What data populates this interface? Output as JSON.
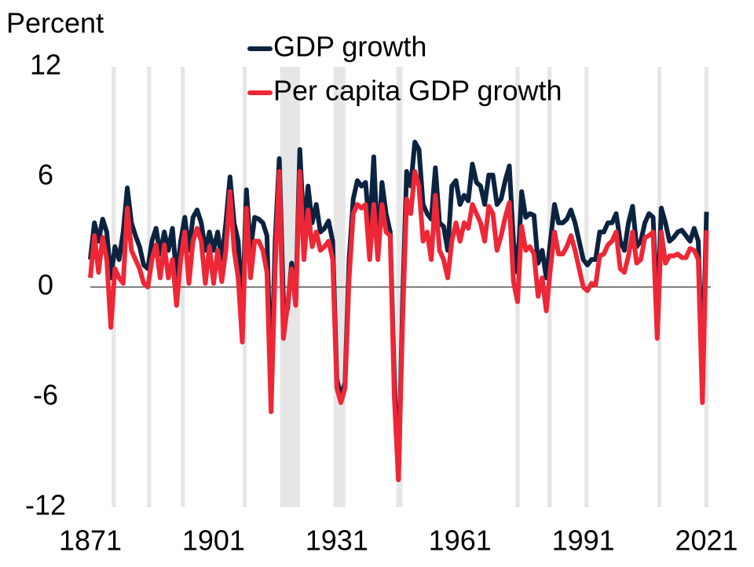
{
  "chart_data": {
    "type": "line",
    "y_axis_label": "Percent",
    "x": [
      1871,
      1872,
      1873,
      1874,
      1875,
      1876,
      1877,
      1878,
      1879,
      1880,
      1881,
      1882,
      1883,
      1884,
      1885,
      1886,
      1887,
      1888,
      1889,
      1890,
      1891,
      1892,
      1893,
      1894,
      1895,
      1896,
      1897,
      1898,
      1899,
      1900,
      1901,
      1902,
      1903,
      1904,
      1905,
      1906,
      1907,
      1908,
      1909,
      1910,
      1911,
      1912,
      1913,
      1914,
      1915,
      1916,
      1917,
      1918,
      1919,
      1920,
      1921,
      1922,
      1923,
      1924,
      1925,
      1926,
      1927,
      1928,
      1929,
      1930,
      1931,
      1932,
      1933,
      1934,
      1935,
      1936,
      1937,
      1938,
      1939,
      1940,
      1941,
      1942,
      1943,
      1944,
      1945,
      1946,
      1947,
      1948,
      1949,
      1950,
      1951,
      1952,
      1953,
      1954,
      1955,
      1956,
      1957,
      1958,
      1959,
      1960,
      1961,
      1962,
      1963,
      1964,
      1965,
      1966,
      1967,
      1968,
      1969,
      1970,
      1971,
      1972,
      1973,
      1974,
      1975,
      1976,
      1977,
      1978,
      1979,
      1980,
      1981,
      1982,
      1983,
      1984,
      1985,
      1986,
      1987,
      1988,
      1989,
      1990,
      1991,
      1992,
      1993,
      1994,
      1995,
      1996,
      1997,
      1998,
      1999,
      2000,
      2001,
      2002,
      2003,
      2004,
      2005,
      2006,
      2007,
      2008,
      2009,
      2010,
      2011,
      2012,
      2013,
      2014,
      2015,
      2016,
      2017,
      2018,
      2019,
      2020,
      2021
    ],
    "series": [
      {
        "name": "GDP growth",
        "color": "#0c2340",
        "values": [
          1.5,
          3.5,
          2.5,
          3.7,
          3,
          0.5,
          2.2,
          1.5,
          3,
          5.4,
          3.5,
          2.8,
          2.2,
          1.2,
          1,
          2.5,
          3.2,
          1.8,
          3,
          2,
          3.2,
          0.5,
          2.5,
          3.8,
          2,
          3.8,
          4.2,
          3.5,
          2,
          3,
          2,
          3,
          1.5,
          3.5,
          6,
          3.5,
          2.5,
          -1.5,
          5.3,
          2,
          3.8,
          3.7,
          3.5,
          2.8,
          -5.5,
          2.5,
          7,
          -0.8,
          -1.2,
          1.3,
          -0.8,
          7.5,
          3,
          5.5,
          3.5,
          4.5,
          3,
          3.2,
          3.6,
          2.5,
          -5,
          -6,
          -5.2,
          1.5,
          4.8,
          5.8,
          5.5,
          5.7,
          3,
          7.1,
          1.8,
          5.7,
          4,
          3,
          -5,
          -10.5,
          -1,
          6.3,
          5.5,
          7.9,
          7.5,
          4.5,
          4,
          3.7,
          6.5,
          3.5,
          3.3,
          2,
          5.5,
          5.8,
          4.5,
          5,
          4.7,
          6.7,
          5.7,
          5.5,
          4.5,
          6.1,
          6.1,
          4.5,
          4.8,
          5.8,
          6.6,
          2.5,
          0.8,
          5.2,
          3.8,
          4,
          3.9,
          1.3,
          2,
          0.5,
          2.5,
          4.5,
          3.5,
          3.5,
          3.7,
          4.2,
          3.5,
          2.5,
          1.5,
          1.2,
          1.5,
          1.5,
          3,
          3,
          3.5,
          3.5,
          4,
          2.5,
          2,
          3.5,
          4.4,
          2.2,
          2.5,
          3.5,
          4,
          3.8,
          -1.5,
          4.3,
          3.5,
          2.5,
          2.7,
          3,
          3.1,
          2.8,
          2.5,
          3.2,
          2.5,
          -4.8,
          4.1
        ]
      },
      {
        "name": "Per capita GDP growth",
        "color": "#ee2737",
        "values": [
          0.5,
          2.8,
          0.8,
          2.7,
          1.5,
          -2.2,
          1,
          0.5,
          0.2,
          4.3,
          2,
          1.5,
          1,
          0.2,
          0,
          1.5,
          2.3,
          0.5,
          2.3,
          0.5,
          1.5,
          -1,
          1.5,
          3,
          0.2,
          2.5,
          3.2,
          2.5,
          0.2,
          2.2,
          0.2,
          2,
          0.3,
          2,
          5.2,
          2,
          0.5,
          -3,
          4.3,
          0.5,
          2.5,
          2.5,
          2,
          0.8,
          -6.8,
          1,
          6.3,
          -2.8,
          -1,
          1,
          -1,
          6.3,
          1.5,
          4.2,
          2.2,
          3,
          2,
          2.2,
          2.5,
          1.5,
          -5.5,
          -6.3,
          -5.5,
          0.5,
          4,
          4.5,
          4.3,
          4.5,
          1.5,
          4.5,
          1.5,
          4.5,
          3,
          2.8,
          -6,
          -10.5,
          -2,
          4.8,
          4,
          6.3,
          5.5,
          2.5,
          3,
          1.5,
          5,
          2,
          1.5,
          0.5,
          2.5,
          3.5,
          2.5,
          3.5,
          3.2,
          4.5,
          4,
          3.5,
          2.5,
          4.4,
          4,
          2,
          2.8,
          3.8,
          4.6,
          0.3,
          -0.8,
          3.3,
          2,
          2.2,
          1.8,
          -0.5,
          0.5,
          -1.3,
          1,
          3,
          1.8,
          1.8,
          2.2,
          2.8,
          2,
          1,
          0,
          -0.2,
          0.2,
          0.1,
          1.7,
          1.8,
          2.3,
          2.5,
          3,
          1,
          0.8,
          1.7,
          3,
          1.3,
          1.5,
          2.7,
          2.8,
          3,
          -2.8,
          3,
          1.3,
          1.7,
          1.7,
          1.8,
          1.6,
          1.6,
          2.1,
          2,
          1.5,
          -6.3,
          3.1
        ]
      }
    ],
    "shaded_periods": [
      [
        1876.2,
        1877.2
      ],
      [
        1884.8,
        1885.8
      ],
      [
        1893,
        1894
      ],
      [
        1908.1,
        1909.1
      ],
      [
        1917.2,
        1922
      ],
      [
        1930.2,
        1933.1
      ],
      [
        1945.5,
        1947
      ],
      [
        1974.5,
        1975.5
      ],
      [
        1982.3,
        1983.3
      ],
      [
        1991.3,
        1992.3
      ],
      [
        2009,
        2010
      ],
      [
        2020.5,
        2021.5
      ]
    ],
    "shade_color": "#e6e6e6",
    "xlim": [
      1871,
      2023
    ],
    "xticks": [
      1871,
      1901,
      1931,
      1961,
      1991,
      2021
    ],
    "ylim": [
      -12,
      12
    ],
    "yticks": [
      12,
      6,
      0,
      -6,
      -12
    ],
    "legend": "top"
  }
}
